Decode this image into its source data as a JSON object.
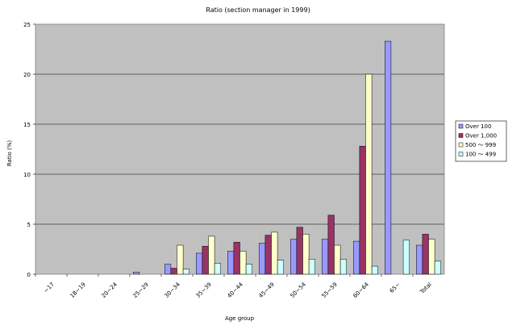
{
  "chart_data": {
    "type": "bar",
    "title": "Ratio (section manager in 1999)",
    "xlabel": "Age group",
    "ylabel": "Ratio (%)",
    "ylim": [
      0,
      25
    ],
    "yticks": [
      0,
      5,
      10,
      15,
      20,
      25
    ],
    "categories": [
      "~17",
      "18~19",
      "20~24",
      "25~29",
      "30~34",
      "35~39",
      "40~44",
      "45~49",
      "50~54",
      "55~59",
      "60~64",
      "65~",
      "Total"
    ],
    "series": [
      {
        "name": "Over 100",
        "color": "#9999ff",
        "values": [
          0,
          0,
          0,
          0.2,
          1.0,
          2.1,
          2.3,
          3.1,
          3.5,
          3.5,
          3.3,
          23.3,
          2.9
        ]
      },
      {
        "name": "Over 1,000",
        "color": "#993366",
        "values": [
          0,
          0,
          0,
          0,
          0.6,
          2.8,
          3.2,
          3.9,
          4.7,
          5.9,
          12.8,
          0,
          4.0
        ]
      },
      {
        "name": "500 ～ 999",
        "color": "#ffffcc",
        "values": [
          0,
          0,
          0,
          0,
          2.9,
          3.8,
          2.3,
          4.2,
          4.0,
          2.9,
          20.0,
          0,
          3.5
        ]
      },
      {
        "name": "100 ～ 499",
        "color": "#ccffff",
        "values": [
          0,
          0,
          0,
          0,
          0.5,
          1.1,
          1.0,
          1.4,
          1.5,
          1.5,
          0.8,
          3.4,
          1.3
        ]
      }
    ],
    "grid": true,
    "legend": "right"
  }
}
